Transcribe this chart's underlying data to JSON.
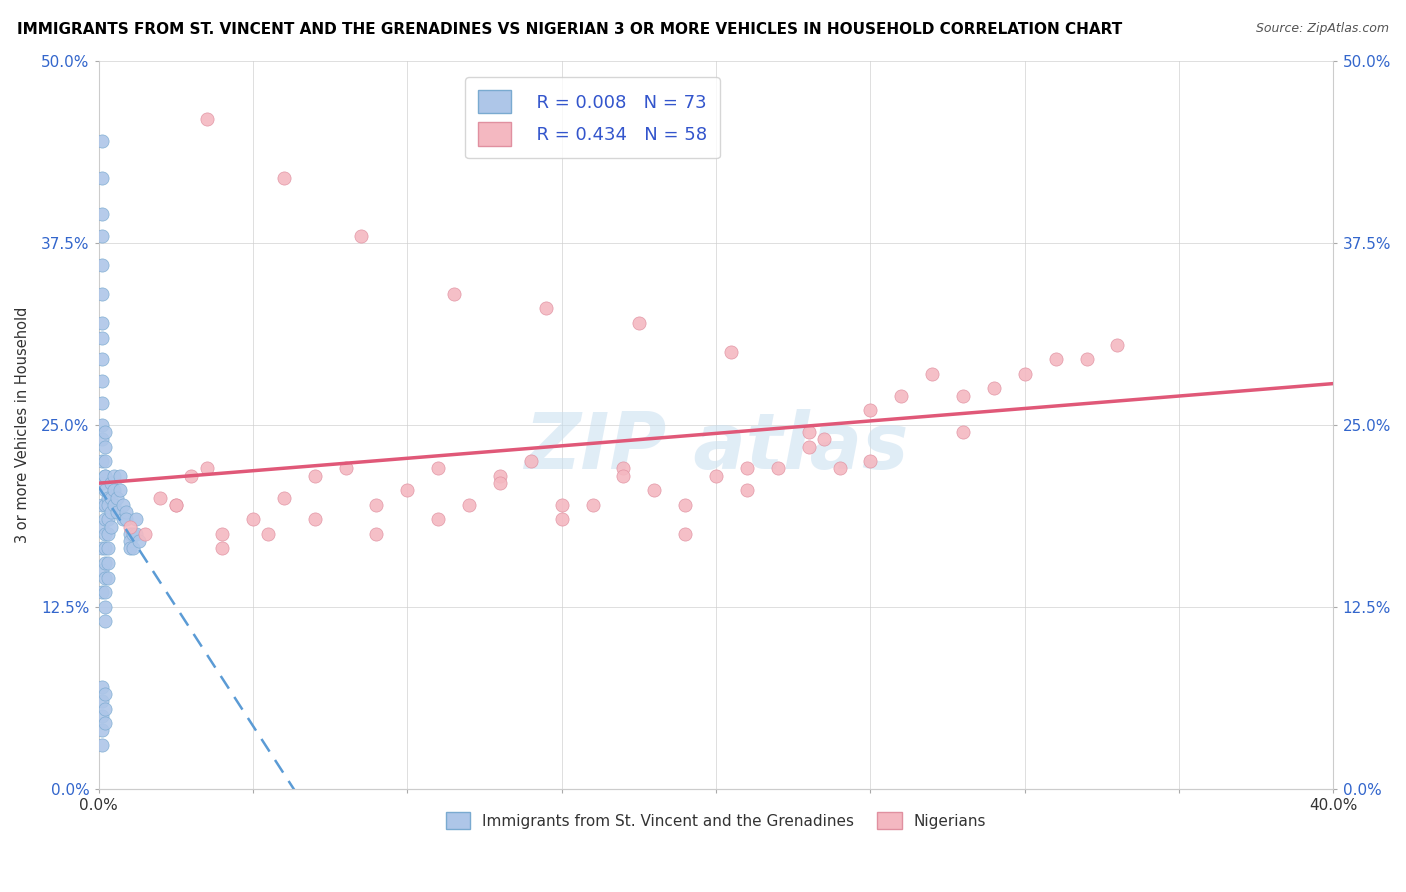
{
  "title": "IMMIGRANTS FROM ST. VINCENT AND THE GRENADINES VS NIGERIAN 3 OR MORE VEHICLES IN HOUSEHOLD CORRELATION CHART",
  "source": "Source: ZipAtlas.com",
  "ylabel": "3 or more Vehicles in Household",
  "xlabel_blue": "Immigrants from St. Vincent and the Grenadines",
  "xlabel_pink": "Nigerians",
  "xlim": [
    0.0,
    0.4
  ],
  "ylim": [
    0.0,
    0.5
  ],
  "xticks": [
    0.0,
    0.05,
    0.1,
    0.15,
    0.2,
    0.25,
    0.3,
    0.35,
    0.4
  ],
  "yticks": [
    0.0,
    0.125,
    0.25,
    0.375,
    0.5
  ],
  "ytick_labels": [
    "0.0%",
    "12.5%",
    "25.0%",
    "37.5%",
    "50.0%"
  ],
  "xtick_labels": [
    "0.0%",
    "",
    "",
    "",
    "",
    "",
    "",
    "",
    "40.0%"
  ],
  "legend_blue_R": "R = 0.008",
  "legend_blue_N": "N = 73",
  "legend_pink_R": "R = 0.434",
  "legend_pink_N": "N = 58",
  "blue_color": "#aec6e8",
  "blue_edge_color": "#7aaad0",
  "blue_line_color": "#5b9bd5",
  "pink_color": "#f4b8c1",
  "pink_edge_color": "#e090a0",
  "pink_line_color": "#e05878",
  "legend_text_color": "#3355cc",
  "watermark_color": "#c8dff0",
  "blue_x": [
    0.001,
    0.001,
    0.001,
    0.001,
    0.001,
    0.001,
    0.001,
    0.001,
    0.001,
    0.001,
    0.001,
    0.001,
    0.001,
    0.001,
    0.001,
    0.001,
    0.001,
    0.001,
    0.001,
    0.001,
    0.002,
    0.002,
    0.002,
    0.002,
    0.002,
    0.002,
    0.002,
    0.002,
    0.002,
    0.002,
    0.002,
    0.002,
    0.002,
    0.002,
    0.002,
    0.003,
    0.003,
    0.003,
    0.003,
    0.003,
    0.003,
    0.003,
    0.004,
    0.004,
    0.004,
    0.004,
    0.005,
    0.005,
    0.005,
    0.006,
    0.006,
    0.007,
    0.007,
    0.008,
    0.008,
    0.009,
    0.009,
    0.01,
    0.01,
    0.01,
    0.011,
    0.011,
    0.012,
    0.012,
    0.013,
    0.001,
    0.001,
    0.001,
    0.001,
    0.001,
    0.002,
    0.002,
    0.002
  ],
  "blue_y": [
    0.445,
    0.42,
    0.395,
    0.38,
    0.36,
    0.34,
    0.32,
    0.31,
    0.295,
    0.28,
    0.265,
    0.25,
    0.24,
    0.225,
    0.21,
    0.195,
    0.18,
    0.165,
    0.15,
    0.135,
    0.215,
    0.205,
    0.195,
    0.185,
    0.175,
    0.165,
    0.155,
    0.145,
    0.135,
    0.125,
    0.115,
    0.245,
    0.235,
    0.225,
    0.215,
    0.2,
    0.195,
    0.185,
    0.175,
    0.165,
    0.155,
    0.145,
    0.21,
    0.2,
    0.19,
    0.18,
    0.215,
    0.205,
    0.195,
    0.2,
    0.19,
    0.215,
    0.205,
    0.195,
    0.185,
    0.19,
    0.185,
    0.175,
    0.17,
    0.165,
    0.175,
    0.165,
    0.185,
    0.175,
    0.17,
    0.06,
    0.05,
    0.04,
    0.03,
    0.07,
    0.065,
    0.055,
    0.045
  ],
  "pink_x": [
    0.01,
    0.02,
    0.025,
    0.03,
    0.035,
    0.04,
    0.05,
    0.06,
    0.07,
    0.08,
    0.09,
    0.1,
    0.11,
    0.12,
    0.13,
    0.14,
    0.15,
    0.16,
    0.17,
    0.18,
    0.19,
    0.2,
    0.21,
    0.22,
    0.23,
    0.24,
    0.25,
    0.26,
    0.27,
    0.28,
    0.29,
    0.3,
    0.31,
    0.32,
    0.33,
    0.015,
    0.025,
    0.04,
    0.055,
    0.07,
    0.09,
    0.11,
    0.13,
    0.15,
    0.17,
    0.19,
    0.21,
    0.23,
    0.25,
    0.28,
    0.035,
    0.06,
    0.085,
    0.115,
    0.145,
    0.175,
    0.205,
    0.235
  ],
  "pink_y": [
    0.18,
    0.2,
    0.195,
    0.215,
    0.22,
    0.175,
    0.185,
    0.2,
    0.215,
    0.22,
    0.195,
    0.205,
    0.22,
    0.195,
    0.215,
    0.225,
    0.185,
    0.195,
    0.22,
    0.205,
    0.195,
    0.215,
    0.205,
    0.22,
    0.245,
    0.22,
    0.26,
    0.27,
    0.285,
    0.27,
    0.275,
    0.285,
    0.295,
    0.295,
    0.305,
    0.175,
    0.195,
    0.165,
    0.175,
    0.185,
    0.175,
    0.185,
    0.21,
    0.195,
    0.215,
    0.175,
    0.22,
    0.235,
    0.225,
    0.245,
    0.46,
    0.42,
    0.38,
    0.34,
    0.33,
    0.32,
    0.3,
    0.24
  ]
}
